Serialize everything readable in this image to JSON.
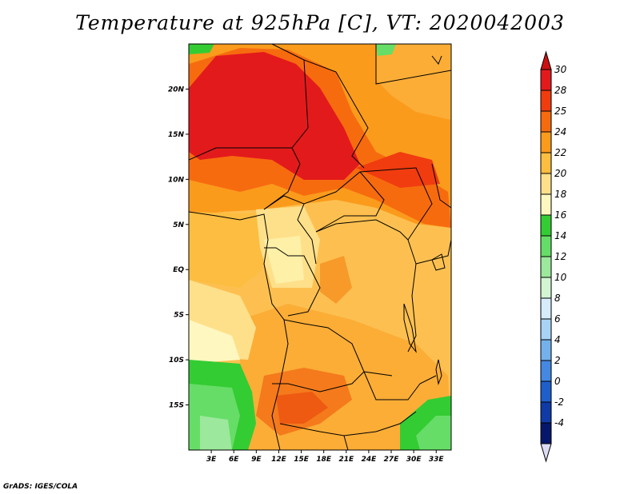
{
  "title": "Temperature at 925hPa [C], VT: 2020042003",
  "footer": "GrADS: IGES/COLA",
  "map": {
    "lon_range": [
      0,
      35
    ],
    "lat_range": [
      -20,
      25
    ],
    "x_ticks": [
      "3E",
      "6E",
      "9E",
      "12E",
      "15E",
      "18E",
      "21E",
      "24E",
      "27E",
      "30E",
      "33E"
    ],
    "y_ticks": [
      "20N",
      "15N",
      "10N",
      "5N",
      "EQ",
      "5S",
      "10S",
      "15S"
    ]
  },
  "colorbar": {
    "labels": [
      "30",
      "28",
      "25",
      "24",
      "22",
      "20",
      "18",
      "16",
      "14",
      "12",
      "10",
      "8",
      "6",
      "4",
      "2",
      "0",
      "-2",
      "-4"
    ],
    "colors": [
      "#e31a1c",
      "#f03c0f",
      "#f76b0f",
      "#fb9b1c",
      "#fdbd40",
      "#fee08b",
      "#fff7c0",
      "#33cc33",
      "#66dd66",
      "#9ce89c",
      "#d2f5d2",
      "#d6ecfa",
      "#a8d3f5",
      "#74b1ec",
      "#4488e2",
      "#1f5fcc",
      "#103aa6",
      "#06166b"
    ],
    "top_triangle_color": "#cc1010",
    "bottom_triangle_color": "#dcdcf4"
  }
}
